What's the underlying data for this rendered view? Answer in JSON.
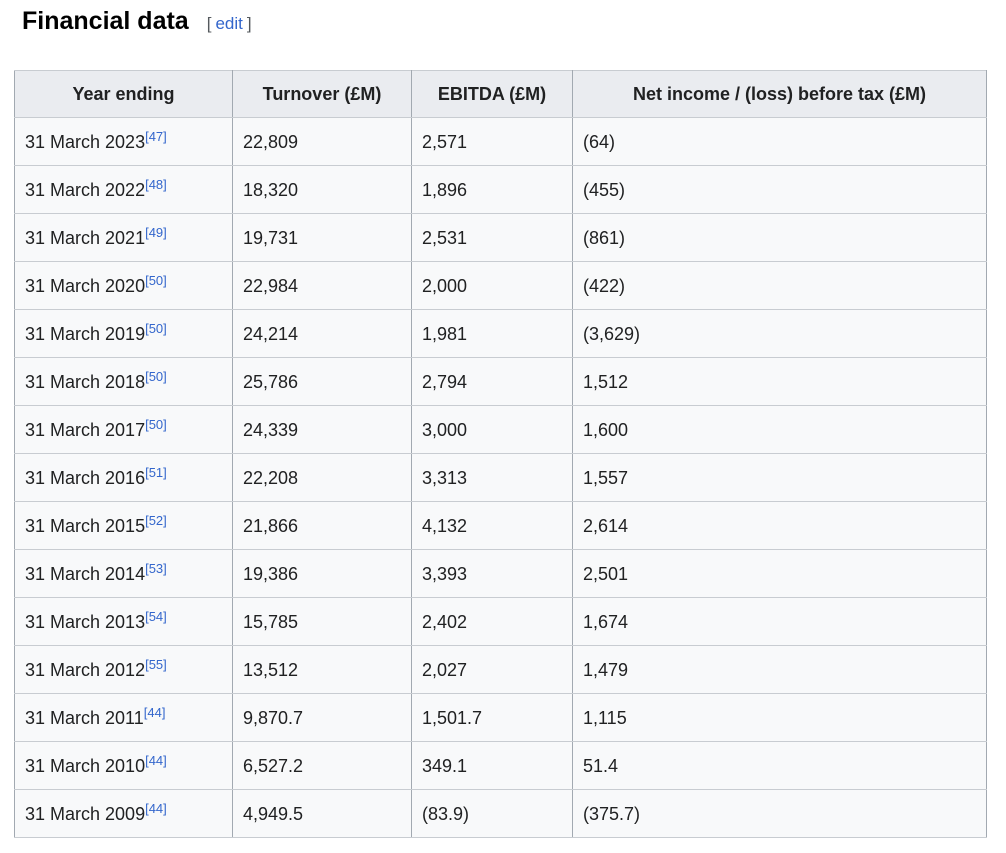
{
  "heading": {
    "title": "Financial data",
    "edit": {
      "open_bracket": "[",
      "label": "edit",
      "close_bracket": "]"
    }
  },
  "colors": {
    "link_blue": "#3366cc",
    "header_bg": "#eaecf0",
    "cell_bg": "#f8f9fa",
    "border_vertical": "#a2a9b1",
    "border_horizontal": "#c8ccd1",
    "text": "#202122",
    "edit_bracket": "#54595d"
  },
  "table": {
    "columns": [
      "Year ending",
      "Turnover (£M)",
      "EBITDA (£M)",
      "Net income / (loss) before tax (£M)"
    ],
    "rows": [
      {
        "year_ending": "31 March 2023",
        "ref": "[47]",
        "turnover": "22,809",
        "ebitda": "2,571",
        "net_income": "(64)"
      },
      {
        "year_ending": "31 March 2022",
        "ref": "[48]",
        "turnover": "18,320",
        "ebitda": "1,896",
        "net_income": "(455)"
      },
      {
        "year_ending": "31 March 2021",
        "ref": "[49]",
        "turnover": "19,731",
        "ebitda": "2,531",
        "net_income": "(861)"
      },
      {
        "year_ending": "31 March 2020",
        "ref": "[50]",
        "turnover": "22,984",
        "ebitda": "2,000",
        "net_income": "(422)"
      },
      {
        "year_ending": "31 March 2019",
        "ref": "[50]",
        "turnover": "24,214",
        "ebitda": "1,981",
        "net_income": "(3,629)"
      },
      {
        "year_ending": "31 March 2018",
        "ref": "[50]",
        "turnover": "25,786",
        "ebitda": "2,794",
        "net_income": "1,512"
      },
      {
        "year_ending": "31 March 2017",
        "ref": "[50]",
        "turnover": "24,339",
        "ebitda": "3,000",
        "net_income": "1,600"
      },
      {
        "year_ending": "31 March 2016",
        "ref": "[51]",
        "turnover": "22,208",
        "ebitda": "3,313",
        "net_income": "1,557"
      },
      {
        "year_ending": "31 March 2015",
        "ref": "[52]",
        "turnover": "21,866",
        "ebitda": "4,132",
        "net_income": "2,614"
      },
      {
        "year_ending": "31 March 2014",
        "ref": "[53]",
        "turnover": "19,386",
        "ebitda": "3,393",
        "net_income": "2,501"
      },
      {
        "year_ending": "31 March 2013",
        "ref": "[54]",
        "turnover": "15,785",
        "ebitda": "2,402",
        "net_income": "1,674"
      },
      {
        "year_ending": "31 March 2012",
        "ref": "[55]",
        "turnover": "13,512",
        "ebitda": "2,027",
        "net_income": "1,479"
      },
      {
        "year_ending": "31 March 2011",
        "ref": "[44]",
        "turnover": "9,870.7",
        "ebitda": "1,501.7",
        "net_income": "1,115"
      },
      {
        "year_ending": "31 March 2010",
        "ref": "[44]",
        "turnover": "6,527.2",
        "ebitda": "349.1",
        "net_income": "51.4"
      },
      {
        "year_ending": "31 March 2009",
        "ref": "[44]",
        "turnover": "4,949.5",
        "ebitda": "(83.9)",
        "net_income": "(375.7)"
      }
    ]
  }
}
